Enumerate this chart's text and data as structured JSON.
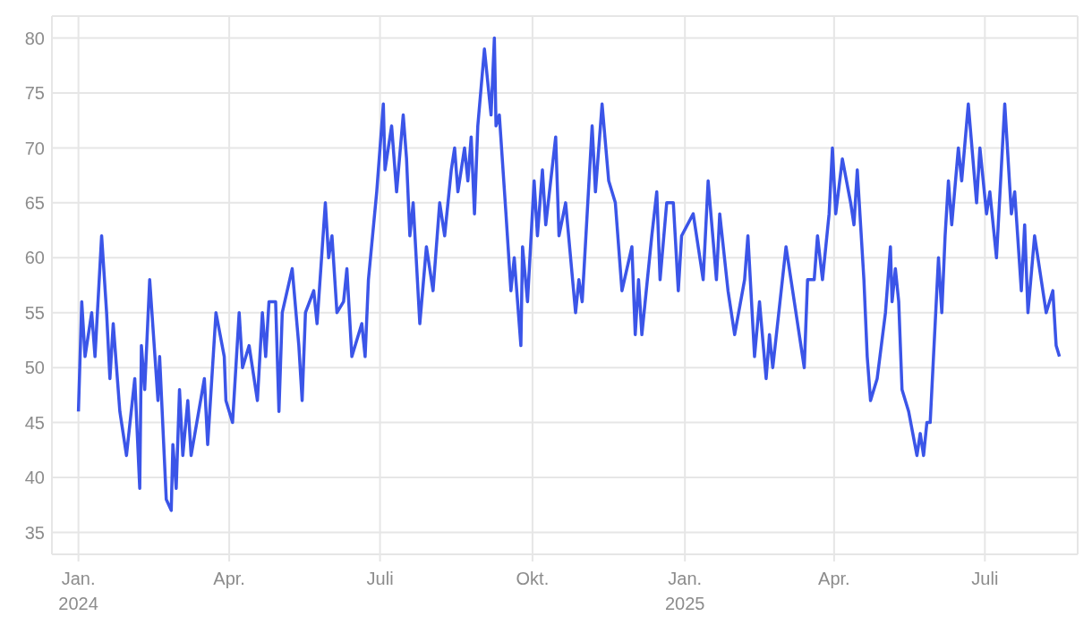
{
  "chart_data": {
    "type": "line",
    "x": [
      "2024-01-01",
      "2024-01-03",
      "2024-01-05",
      "2024-01-09",
      "2024-01-11",
      "2024-01-15",
      "2024-01-18",
      "2024-01-20",
      "2024-01-22",
      "2024-01-26",
      "2024-01-30",
      "2024-02-04",
      "2024-02-07",
      "2024-02-08",
      "2024-02-10",
      "2024-02-13",
      "2024-02-18",
      "2024-02-19",
      "2024-02-23",
      "2024-02-26",
      "2024-02-27",
      "2024-02-29",
      "2024-03-02",
      "2024-03-04",
      "2024-03-07",
      "2024-03-09",
      "2024-03-17",
      "2024-03-19",
      "2024-03-24",
      "2024-03-29",
      "2024-03-30",
      "2024-04-03",
      "2024-04-07",
      "2024-04-09",
      "2024-04-13",
      "2024-04-18",
      "2024-04-21",
      "2024-04-23",
      "2024-04-25",
      "2024-04-29",
      "2024-05-01",
      "2024-05-03",
      "2024-05-09",
      "2024-05-13",
      "2024-05-15",
      "2024-05-17",
      "2024-05-22",
      "2024-05-24",
      "2024-05-29",
      "2024-05-31",
      "2024-06-02",
      "2024-06-05",
      "2024-06-09",
      "2024-06-11",
      "2024-06-14",
      "2024-06-20",
      "2024-06-22",
      "2024-06-24",
      "2024-06-29",
      "2024-07-03",
      "2024-07-04",
      "2024-07-08",
      "2024-07-11",
      "2024-07-15",
      "2024-07-17",
      "2024-07-19",
      "2024-07-21",
      "2024-07-25",
      "2024-07-29",
      "2024-08-02",
      "2024-08-06",
      "2024-08-09",
      "2024-08-13",
      "2024-08-15",
      "2024-08-17",
      "2024-08-21",
      "2024-08-23",
      "2024-08-25",
      "2024-08-27",
      "2024-08-29",
      "2024-09-02",
      "2024-09-06",
      "2024-09-08",
      "2024-09-09",
      "2024-09-11",
      "2024-09-15",
      "2024-09-18",
      "2024-09-20",
      "2024-09-24",
      "2024-09-25",
      "2024-09-28",
      "2024-10-02",
      "2024-10-04",
      "2024-10-07",
      "2024-10-09",
      "2024-10-15",
      "2024-10-17",
      "2024-10-21",
      "2024-10-27",
      "2024-10-29",
      "2024-10-31",
      "2024-11-06",
      "2024-11-08",
      "2024-11-12",
      "2024-11-16",
      "2024-11-20",
      "2024-11-24",
      "2024-11-30",
      "2024-12-02",
      "2024-12-04",
      "2024-12-06",
      "2024-12-12",
      "2024-12-15",
      "2024-12-17",
      "2024-12-21",
      "2024-12-25",
      "2024-12-28",
      "2024-12-30",
      "2025-01-06",
      "2025-01-10",
      "2025-01-12",
      "2025-01-15",
      "2025-01-20",
      "2025-01-22",
      "2025-01-27",
      "2025-01-31",
      "2025-02-06",
      "2025-02-08",
      "2025-02-12",
      "2025-02-15",
      "2025-02-19",
      "2025-02-21",
      "2025-02-23",
      "2025-03-03",
      "2025-03-08",
      "2025-03-14",
      "2025-03-16",
      "2025-03-20",
      "2025-03-22",
      "2025-03-25",
      "2025-03-29",
      "2025-03-31",
      "2025-04-02",
      "2025-04-06",
      "2025-04-11",
      "2025-04-13",
      "2025-04-15",
      "2025-04-19",
      "2025-04-21",
      "2025-04-23",
      "2025-04-27",
      "2025-05-02",
      "2025-05-05",
      "2025-05-06",
      "2025-05-08",
      "2025-05-10",
      "2025-05-12",
      "2025-05-16",
      "2025-05-21",
      "2025-05-23",
      "2025-05-25",
      "2025-05-27",
      "2025-05-29",
      "2025-06-03",
      "2025-06-05",
      "2025-06-07",
      "2025-06-09",
      "2025-06-11",
      "2025-06-15",
      "2025-06-17",
      "2025-06-21",
      "2025-06-26",
      "2025-06-28",
      "2025-07-02",
      "2025-07-04",
      "2025-07-08",
      "2025-07-13",
      "2025-07-17",
      "2025-07-19",
      "2025-07-23",
      "2025-07-25",
      "2025-07-27",
      "2025-07-31",
      "2025-08-05",
      "2025-08-07",
      "2025-08-11",
      "2025-08-13",
      "2025-08-15"
    ],
    "series": [
      {
        "color": "#3b55e8",
        "values": [
          46,
          56,
          51,
          55,
          51,
          62,
          55,
          49,
          54,
          46,
          42,
          49,
          39,
          52,
          48,
          58,
          47,
          51,
          38,
          37,
          43,
          39,
          48,
          42,
          47,
          42,
          49,
          43,
          55,
          51,
          47,
          45,
          55,
          50,
          52,
          47,
          55,
          51,
          56,
          56,
          46,
          55,
          59,
          52,
          47,
          55,
          57,
          54,
          65,
          60,
          62,
          55,
          56,
          59,
          51,
          54,
          51,
          58,
          66,
          74,
          68,
          72,
          66,
          73,
          69,
          62,
          65,
          54,
          61,
          57,
          65,
          62,
          68,
          70,
          66,
          70,
          67,
          71,
          64,
          72,
          79,
          73,
          80,
          72,
          73,
          64,
          57,
          60,
          52,
          61,
          56,
          67,
          62,
          68,
          63,
          71,
          62,
          65,
          55,
          58,
          56,
          72,
          66,
          74,
          67,
          65,
          57,
          61,
          53,
          58,
          53,
          62,
          66,
          58,
          65,
          65,
          57,
          62,
          64,
          60,
          58,
          67,
          58,
          64,
          57,
          53,
          58,
          62,
          51,
          56,
          49,
          53,
          50,
          61,
          56,
          50,
          58,
          58,
          62,
          58,
          64,
          70,
          64,
          69,
          65,
          63,
          68,
          58,
          51,
          47,
          49,
          55,
          61,
          56,
          59,
          56,
          48,
          46,
          42,
          44,
          42,
          45,
          45,
          60,
          55,
          62,
          67,
          63,
          70,
          67,
          74,
          65,
          70,
          64,
          66,
          60,
          74,
          64,
          66,
          57,
          63,
          55,
          62,
          57,
          55,
          57,
          52,
          51
        ]
      }
    ],
    "xlim": [
      "2023-12-16",
      "2025-08-26"
    ],
    "xticks": [
      {
        "value": "2024-01-01",
        "label": "Jan.\n2024"
      },
      {
        "value": "2024-04-01",
        "label": "Apr."
      },
      {
        "value": "2024-07-01",
        "label": "Juli"
      },
      {
        "value": "2024-10-01",
        "label": "Okt."
      },
      {
        "value": "2025-01-01",
        "label": "Jan.\n2025"
      },
      {
        "value": "2025-04-01",
        "label": "Apr."
      },
      {
        "value": "2025-07-01",
        "label": "Juli"
      }
    ],
    "ylim": [
      33,
      82
    ],
    "yticks": [
      35,
      40,
      45,
      50,
      55,
      60,
      65,
      70,
      75,
      80
    ],
    "grid": true,
    "legend": false,
    "marker": "none",
    "line_style": "solid"
  }
}
